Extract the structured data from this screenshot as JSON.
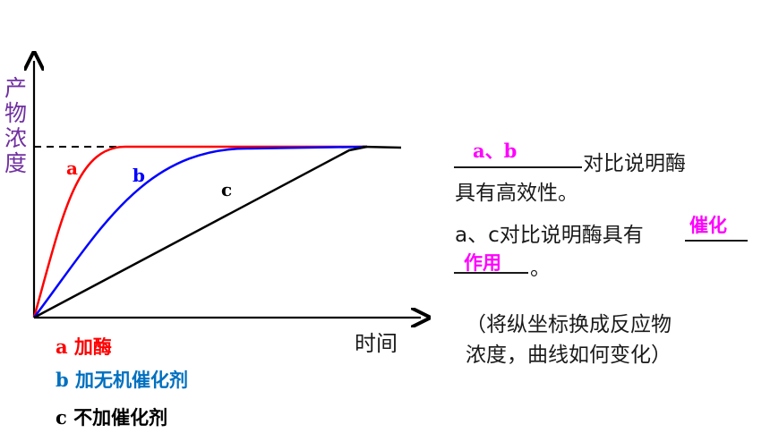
{
  "chart_data": {
    "type": "line",
    "xlabel": "时间",
    "ylabel_chars": [
      "产",
      "物",
      "浓",
      "度"
    ],
    "x_range": [
      0,
      10
    ],
    "y_range": [
      0,
      10
    ],
    "max_level": 10,
    "series": [
      {
        "label": "a",
        "color": "#ff0000"
      },
      {
        "label": "b",
        "color": "#0000ff"
      },
      {
        "label": "c",
        "color": "#000000"
      }
    ],
    "legend": [
      {
        "text": "a 加酶",
        "color": "#ff0000"
      },
      {
        "text": "b 加无机催化剂",
        "color": "#0070c0"
      },
      {
        "text": "c 不加催化剂",
        "color": "#000000"
      }
    ]
  },
  "notes": {
    "q1_answer": "a、b",
    "q1_text_line1": "对比说明酶",
    "q1_text_line2": "具有高效性。",
    "q2_text": "a、c对比说明酶具有",
    "q2_answer_1": "催化",
    "q2_answer_2": "作用",
    "q2_end": "。",
    "q3_line1": "（将纵坐标换成反应物",
    "q3_line2": "浓度，曲线如何变化）"
  }
}
